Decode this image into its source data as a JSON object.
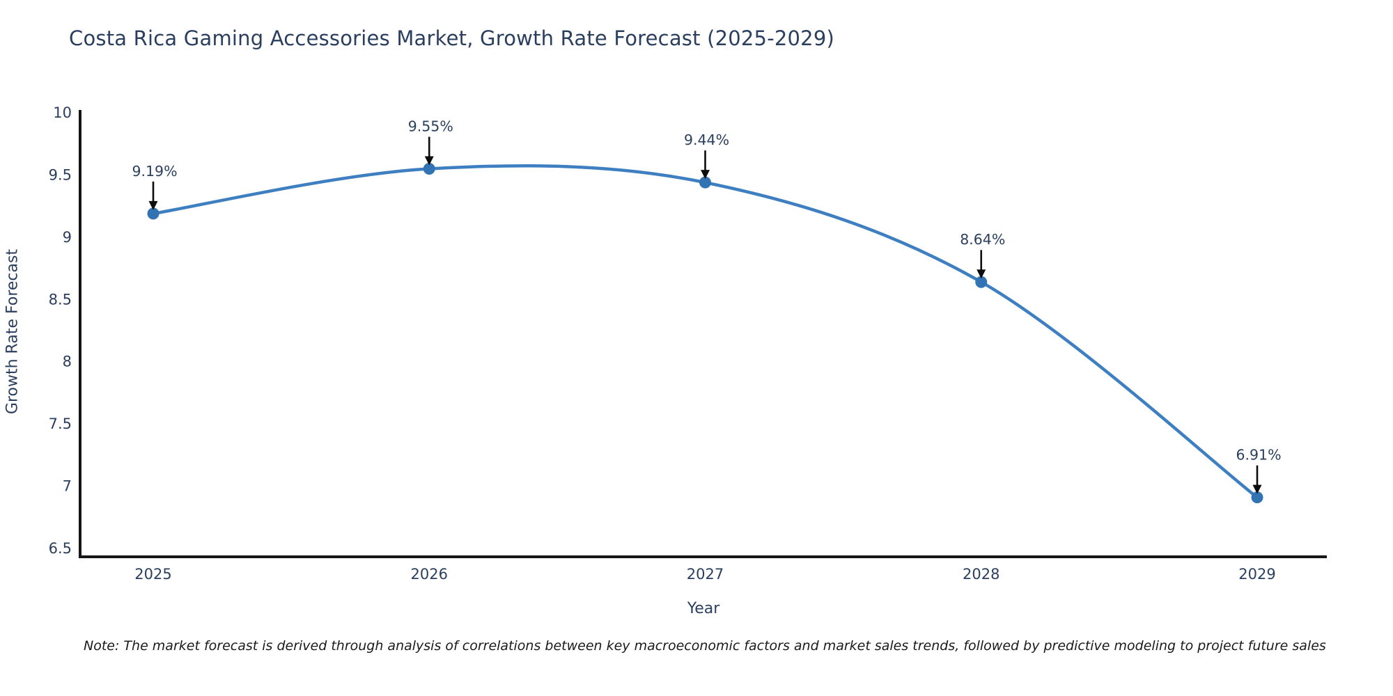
{
  "chart": {
    "title": "Costa Rica Gaming Accessories Market, Growth Rate Forecast (2025-2029)",
    "note": "Note: The market forecast is derived through analysis of correlations between key macroeconomic factors and market sales trends, followed by predictive modeling to project future sales"
  },
  "chart_data": {
    "type": "line",
    "title": "Costa Rica Gaming Accessories Market, Growth Rate Forecast (2025-2029)",
    "xlabel": "Year",
    "ylabel": "Growth Rate Forecast",
    "categories": [
      "2025",
      "2026",
      "2027",
      "2028",
      "2029"
    ],
    "values": [
      9.19,
      9.55,
      9.44,
      8.64,
      6.91
    ],
    "point_labels": [
      "9.19%",
      "9.55%",
      "9.44%",
      "8.64%",
      "6.91%"
    ],
    "y_ticks": [
      10,
      9.5,
      9,
      8.5,
      8,
      7.5,
      7,
      6.5
    ],
    "ylim": [
      6.5,
      10
    ],
    "grid": false,
    "legend": "none",
    "line_shape": "spline",
    "colors": {
      "line": "#3d7fc1",
      "marker": "#3273b3",
      "annotation_text": "#2a3f5f",
      "annotation_arrow": "#0d0d0d",
      "axis_line": "#161616",
      "tick_text": "#2a3f5f"
    }
  }
}
